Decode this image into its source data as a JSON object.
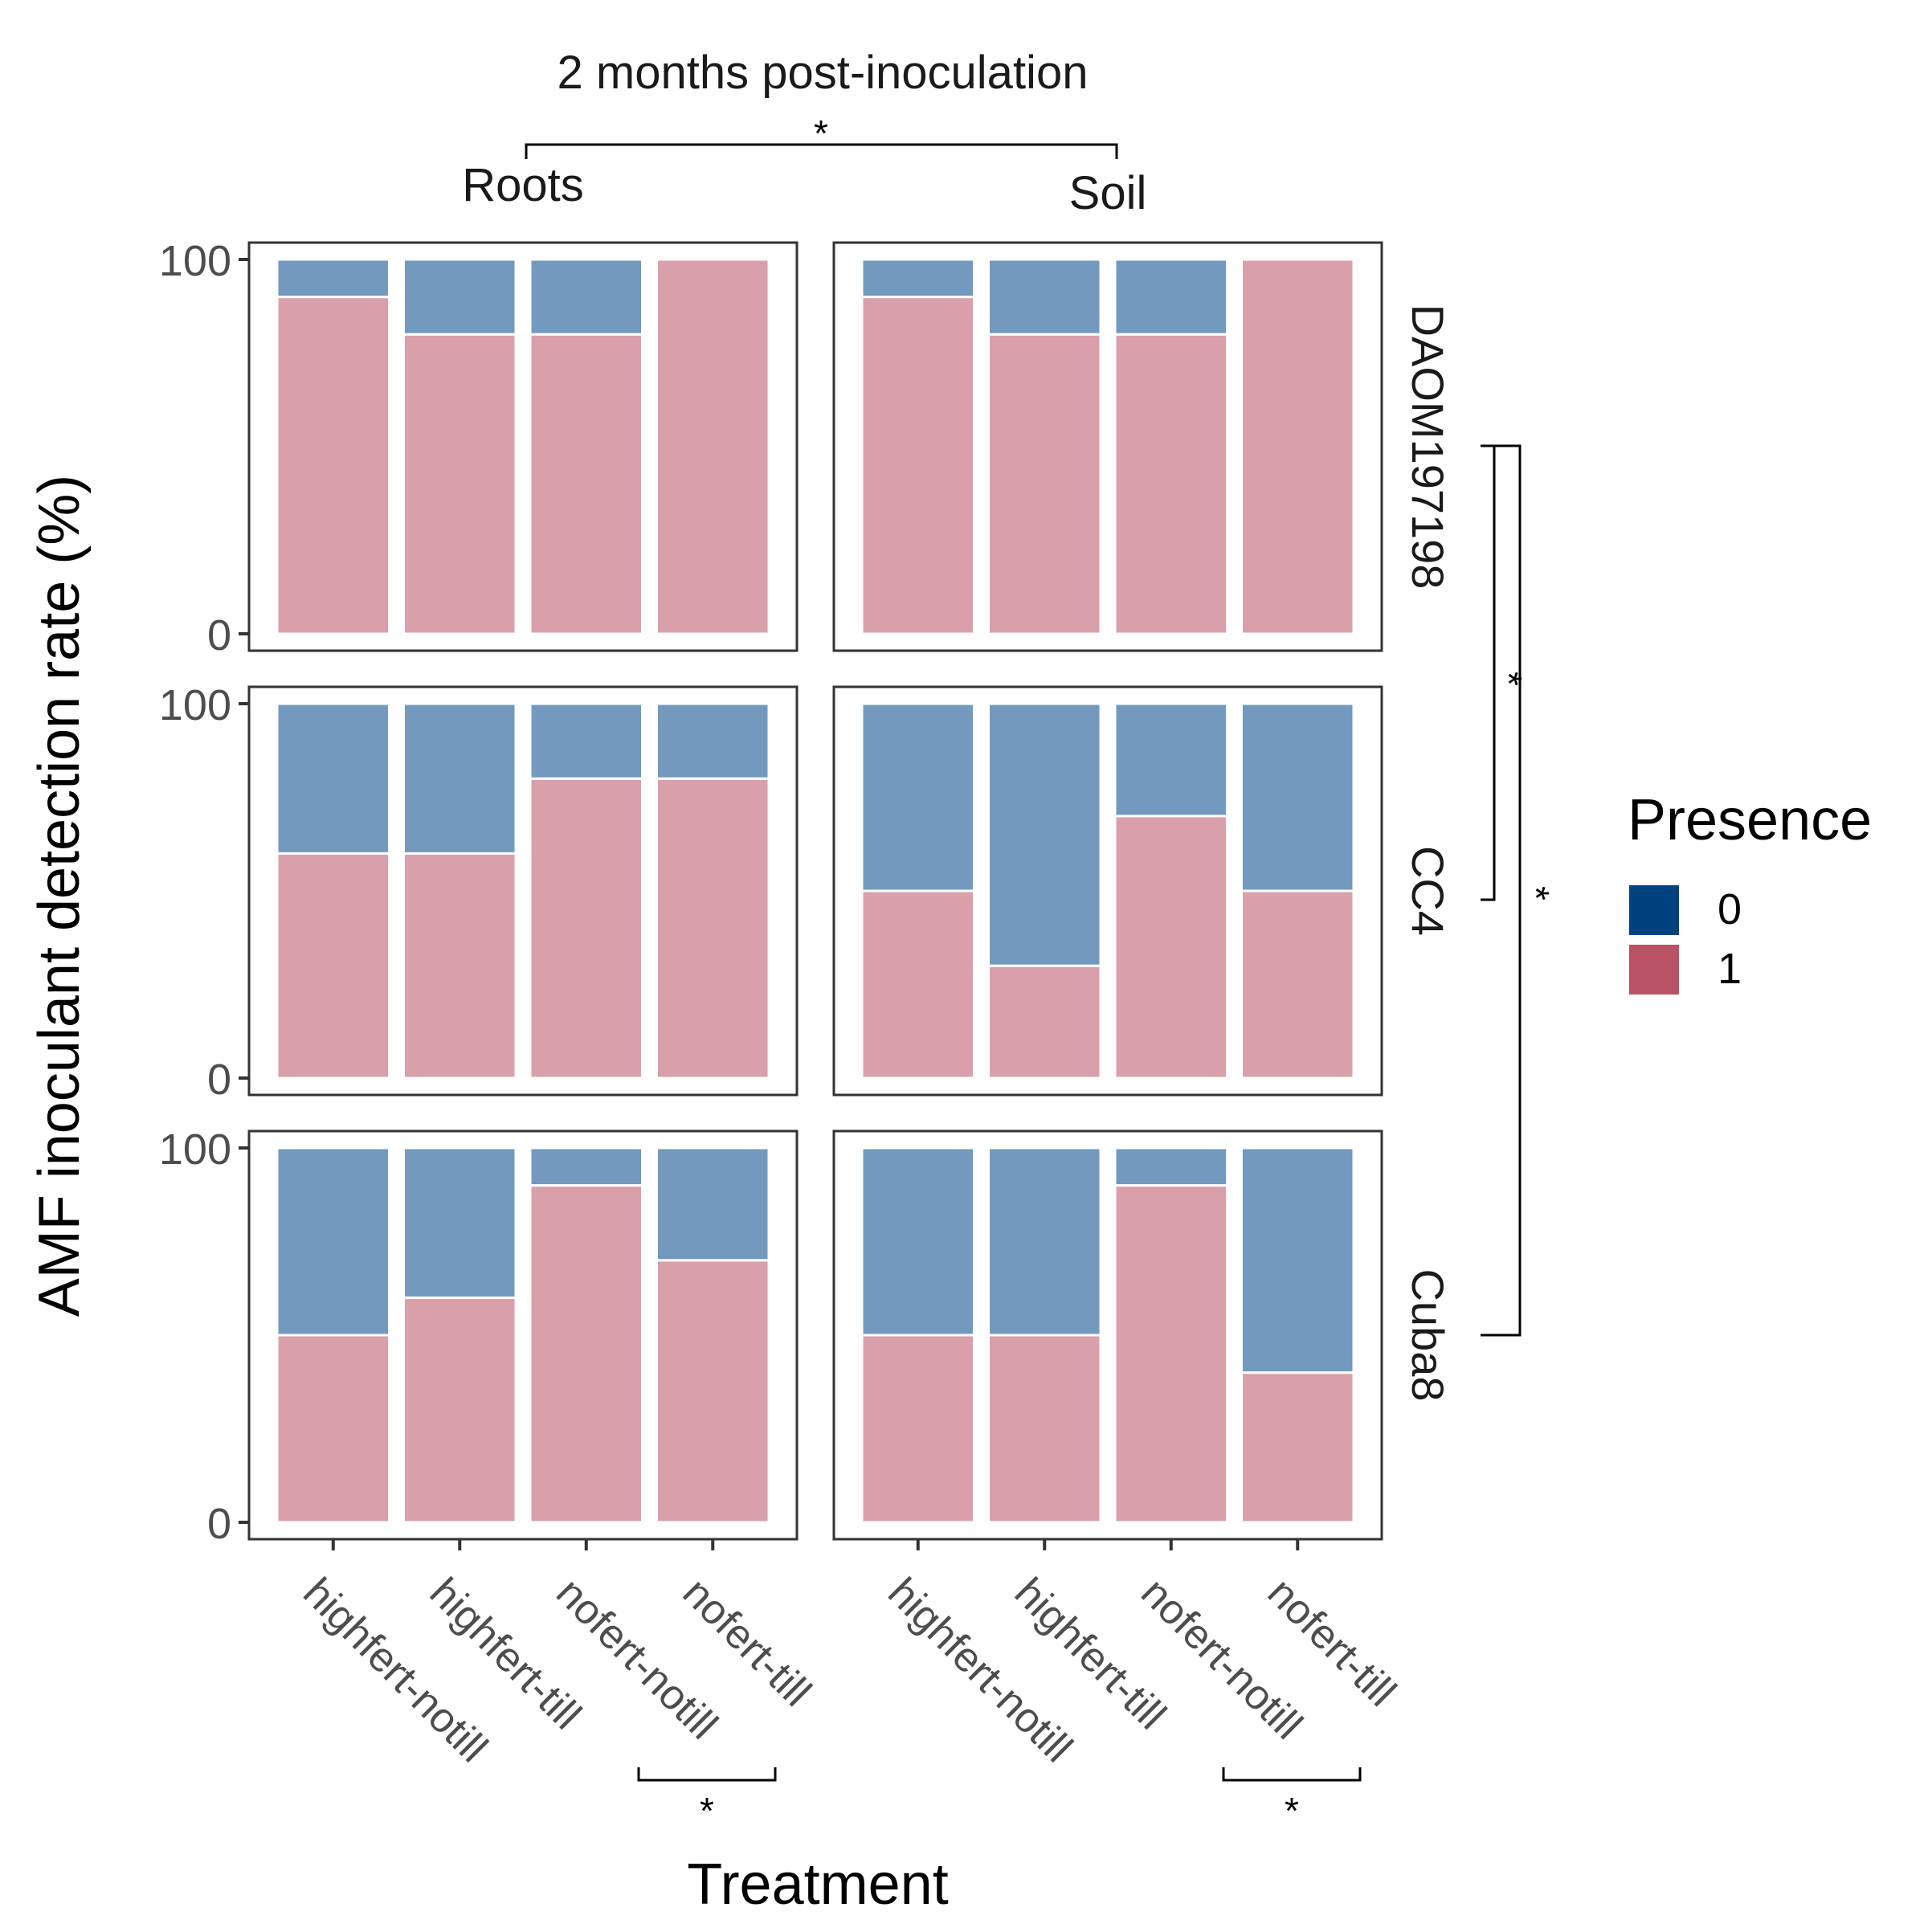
{
  "chart_data": {
    "type": "bar",
    "stacked": true,
    "title": "2 months post-inoculation",
    "xlabel": "Treatment",
    "ylabel": "AMF inoculant detection rate (%)",
    "ylim": [
      0,
      100
    ],
    "yticks": [
      "0",
      "100"
    ],
    "grid": false,
    "legend": {
      "title": "Presence",
      "position": "right",
      "entries": [
        {
          "label": "0",
          "color": "#00427e"
        },
        {
          "label": "1",
          "color": "#b75364"
        }
      ]
    },
    "bar_colors": {
      "0": "#7399bf",
      "1": "#d9a0ab"
    },
    "categories": [
      "highfert-notill",
      "highfert-till",
      "nofert-notill",
      "nofert-till"
    ],
    "columns": [
      "Roots",
      "Soil"
    ],
    "rows": [
      "DAOM197198",
      "CC4",
      "Cuba8"
    ],
    "panels": [
      {
        "row": "DAOM197198",
        "column": "Roots",
        "presence_1": [
          90,
          80,
          80,
          100
        ],
        "presence_0": [
          10,
          20,
          20,
          0
        ]
      },
      {
        "row": "DAOM197198",
        "column": "Soil",
        "presence_1": [
          90,
          80,
          80,
          100
        ],
        "presence_0": [
          10,
          20,
          20,
          0
        ]
      },
      {
        "row": "CC4",
        "column": "Roots",
        "presence_1": [
          60,
          60,
          80,
          80
        ],
        "presence_0": [
          40,
          40,
          20,
          20
        ]
      },
      {
        "row": "CC4",
        "column": "Soil",
        "presence_1": [
          50,
          30,
          70,
          50
        ],
        "presence_0": [
          50,
          70,
          30,
          50
        ]
      },
      {
        "row": "Cuba8",
        "column": "Roots",
        "presence_1": [
          50,
          60,
          90,
          70
        ],
        "presence_0": [
          50,
          40,
          10,
          30
        ]
      },
      {
        "row": "Cuba8",
        "column": "Soil",
        "presence_1": [
          50,
          50,
          90,
          40
        ],
        "presence_0": [
          50,
          50,
          10,
          60
        ]
      }
    ],
    "annotations": {
      "star": "*",
      "brackets": [
        {
          "between": [
            "Roots",
            "Soil"
          ]
        },
        {
          "between": [
            "DAOM197198",
            "CC4"
          ]
        },
        {
          "between": [
            "DAOM197198",
            "Cuba8"
          ]
        },
        {
          "between": [
            "nofert-notill",
            "nofert-till"
          ],
          "column": "Roots"
        },
        {
          "between": [
            "nofert-notill",
            "nofert-till"
          ],
          "column": "Soil"
        }
      ]
    }
  }
}
